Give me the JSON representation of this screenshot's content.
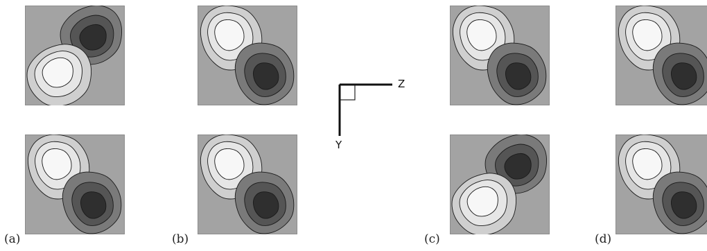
{
  "figure": {
    "captions": [
      "(a)",
      "(b)",
      "(c)",
      "(d)"
    ],
    "axes": {
      "z_label": "Z",
      "y_label": "Y"
    },
    "panels": [
      {
        "id": "a-top",
        "orientation": "A"
      },
      {
        "id": "a-bottom",
        "orientation": "B"
      },
      {
        "id": "b-top",
        "orientation": "B"
      },
      {
        "id": "b-bottom",
        "orientation": "B"
      },
      {
        "id": "c-top",
        "orientation": "B"
      },
      {
        "id": "c-bottom",
        "orientation": "A"
      },
      {
        "id": "d-top",
        "orientation": "B"
      },
      {
        "id": "d-bottom",
        "orientation": "B"
      }
    ],
    "colors": {
      "background": "#a3a3a3",
      "light_outer": "#cfcfcf",
      "light_mid": "#e6e6e6",
      "light_inner": "#f7f7f7",
      "dark_outer": "#7a7a7a",
      "dark_mid": "#555555",
      "dark_inner": "#2f2f2f",
      "contour": "#1a1a1a"
    }
  }
}
